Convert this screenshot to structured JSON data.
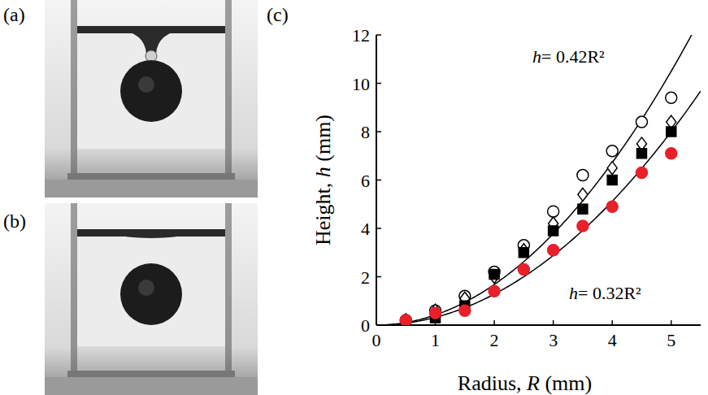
{
  "panel_labels": [
    "(a)",
    "(b)",
    "(c)"
  ],
  "chart_data": {
    "type": "scatter",
    "x_label": "Radius, R (mm)",
    "y_label": "Height, h (mm)",
    "x": [
      0.5,
      1,
      1.5,
      2,
      2.5,
      3,
      3.5,
      4,
      4.5,
      5
    ],
    "xlim": [
      0,
      5.5
    ],
    "xticks": [
      0,
      1,
      2,
      3,
      4,
      5
    ],
    "ylim": [
      0,
      12
    ],
    "yticks": [
      0,
      2,
      4,
      6,
      8,
      10,
      12
    ],
    "grid": false,
    "series": [
      {
        "color": "#000000",
        "marker": "circle-open",
        "values": [
          0.2,
          0.6,
          1.2,
          2.2,
          3.3,
          4.7,
          6.2,
          7.2,
          8.4,
          9.4
        ]
      },
      {
        "color": "#000000",
        "marker": "diamond-open",
        "values": [
          0.2,
          0.6,
          1.1,
          2.0,
          3.1,
          4.2,
          5.4,
          6.5,
          7.5,
          8.4
        ]
      },
      {
        "color": "#000000",
        "marker": "square",
        "values": [
          0.1,
          0.3,
          0.8,
          2.1,
          3.0,
          3.9,
          4.8,
          6.0,
          7.1,
          8.0
        ]
      },
      {
        "color": "#e8202a",
        "marker": "circle",
        "values": [
          0.2,
          0.5,
          0.6,
          1.4,
          2.3,
          3.1,
          4.1,
          4.9,
          6.3,
          7.1
        ]
      }
    ],
    "fits": [
      {
        "label": "h= 0.42R²",
        "coefficient": 0.42
      },
      {
        "label": "h= 0.32R²",
        "coefficient": 0.32
      }
    ]
  }
}
